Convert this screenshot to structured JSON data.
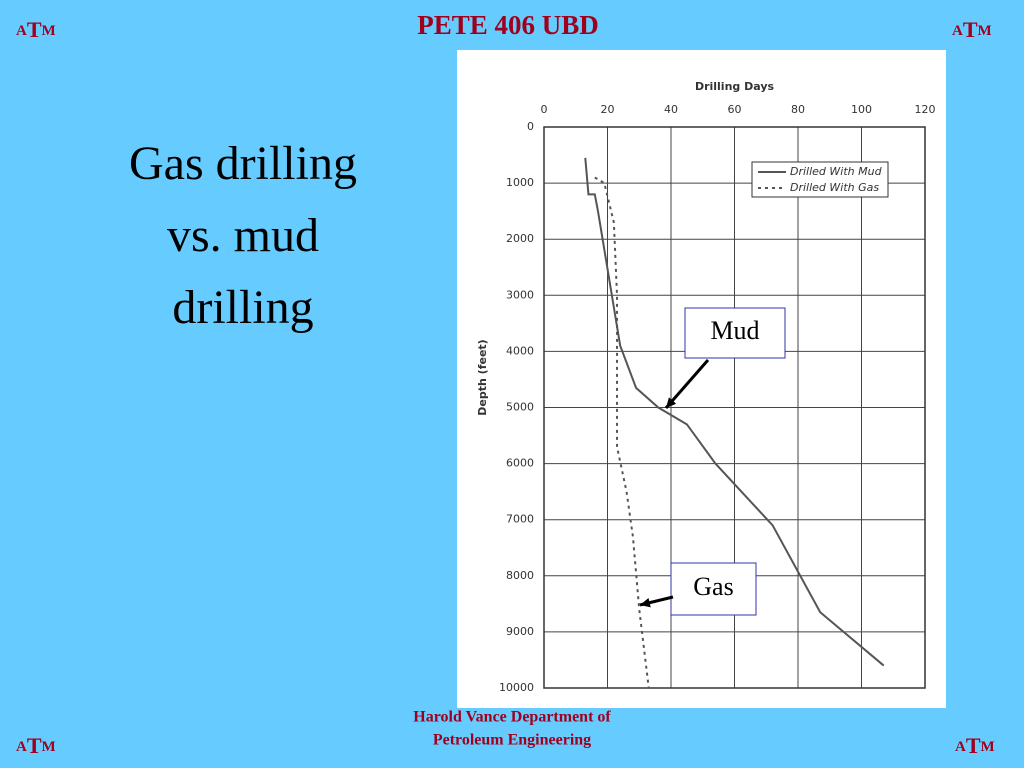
{
  "header": {
    "title": "PETE 406 UBD",
    "logo": [
      "A",
      "T",
      "M"
    ]
  },
  "slide_title": [
    "Gas drilling",
    "vs. mud",
    "drilling"
  ],
  "footer": [
    "Harold Vance Department of",
    "Petroleum Engineering"
  ],
  "chart_data": {
    "type": "line",
    "xlabel": "Drilling Days",
    "ylabel": "Depth (feet)",
    "xlim": [
      0,
      120
    ],
    "xticks": [
      0,
      20,
      40,
      60,
      80,
      100,
      120
    ],
    "ylim": [
      0,
      10000
    ],
    "yticks": [
      0,
      1000,
      2000,
      3000,
      4000,
      5000,
      6000,
      7000,
      8000,
      9000,
      10000
    ],
    "y_inverted": true,
    "grid": true,
    "legend": "upper right",
    "series": [
      {
        "name": "Drilled With Mud",
        "color": "#555555",
        "linestyle": "solid",
        "x": [
          13,
          14,
          16,
          17,
          24,
          29,
          36,
          45,
          54,
          72,
          87,
          107
        ],
        "values": [
          550,
          1200,
          1200,
          1500,
          3900,
          4650,
          5000,
          5300,
          6000,
          7100,
          8650,
          9600
        ]
      },
      {
        "name": "Drilled With Gas",
        "color": "#555555",
        "linestyle": "dotted",
        "x": [
          16,
          19,
          22,
          23,
          23,
          26,
          28,
          30,
          33
        ],
        "values": [
          900,
          1000,
          1700,
          3000,
          5700,
          6500,
          7300,
          8600,
          10000
        ]
      }
    ],
    "annotations": [
      "Mud",
      "Gas"
    ]
  }
}
